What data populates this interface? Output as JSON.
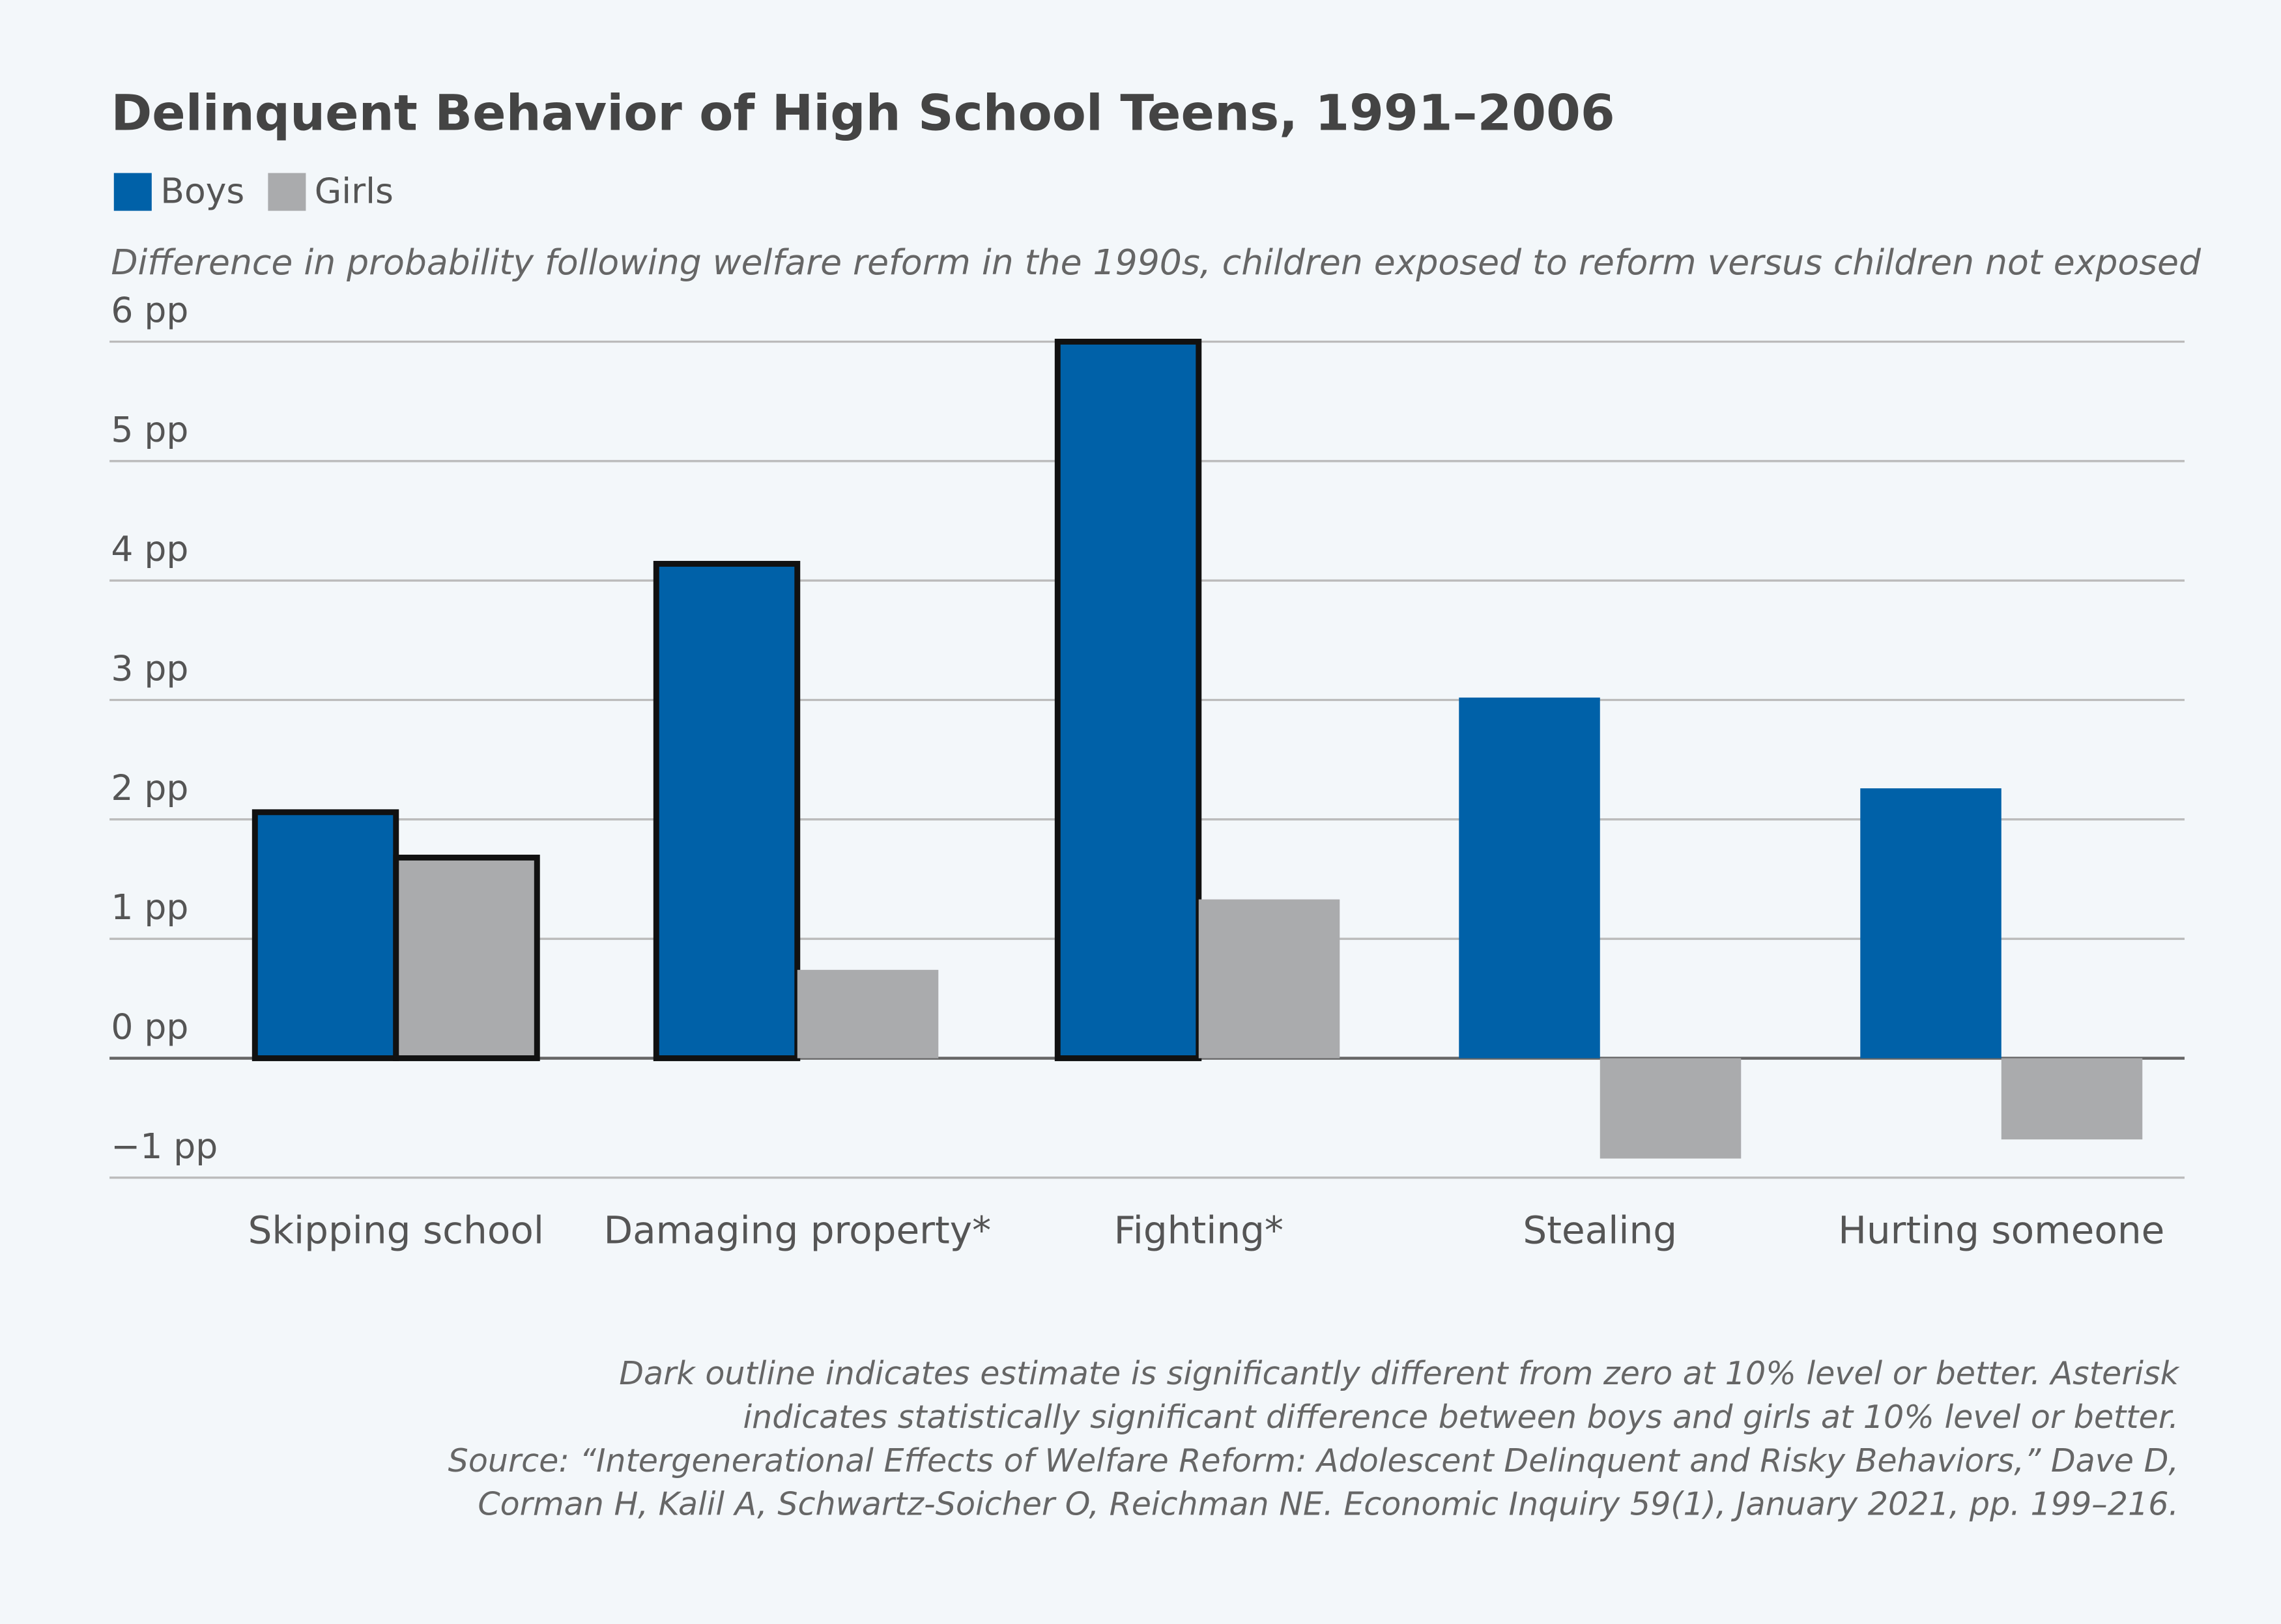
{
  "chart_data": {
    "type": "bar",
    "title": "Delinquent Behavior of High School Teens, 1991–2006",
    "subtitle": "Difference in probability following welfare reform in the 1990s, children exposed to reform versus children not exposed",
    "categories": [
      "Skipping school",
      "Damaging property*",
      "Fighting*",
      "Stealing",
      "Hurting someone"
    ],
    "series": [
      {
        "name": "Boys",
        "color": "#0061a8",
        "values": [
          2.06,
          4.14,
          6.0,
          3.02,
          2.26
        ],
        "outline": [
          true,
          true,
          true,
          false,
          false
        ]
      },
      {
        "name": "Girls",
        "color": "#aaabad",
        "values": [
          1.68,
          0.74,
          1.33,
          -0.84,
          -0.68
        ],
        "outline": [
          true,
          false,
          false,
          false,
          false
        ]
      }
    ],
    "ylim": [
      -1,
      6
    ],
    "yticks": [
      {
        "value": -1,
        "label": "−1 pp"
      },
      {
        "value": 0,
        "label": "0 pp"
      },
      {
        "value": 1,
        "label": "1 pp"
      },
      {
        "value": 2,
        "label": "2 pp"
      },
      {
        "value": 3,
        "label": "3 pp"
      },
      {
        "value": 4,
        "label": "4 pp"
      },
      {
        "value": 5,
        "label": "5 pp"
      },
      {
        "value": 6,
        "label": "6 pp"
      }
    ],
    "grid": true,
    "legend": "top-left",
    "notes": [
      "Dark outline indicates estimate is significantly different from zero at 10% level or better. Asterisk",
      "indicates statistically significant difference between boys and girls at 10% level or better.",
      "Source: “Intergenerational Effects of Welfare Reform: Adolescent Delinquent and Risky Behaviors,” Dave D,",
      "Corman H, Kalil A, Schwartz-Soicher O, Reichman NE. Economic Inquiry 59(1), January 2021, pp. 199–216."
    ]
  }
}
